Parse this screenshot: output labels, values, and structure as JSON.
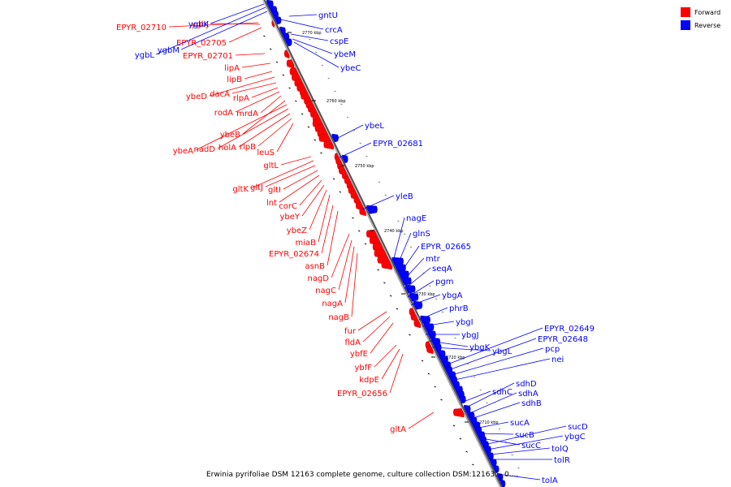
{
  "legend": {
    "forward": {
      "label": "Forward",
      "color": "#ff0000"
    },
    "reverse": {
      "label": "Reverse",
      "color": "#0000ff"
    }
  },
  "caption": "Erwinia pyrifoliae DSM 12163 complete genome, culture collection DSM:12163. - 0....",
  "ticks": [
    "2770 kbp",
    "2760 kbp",
    "2750 kbp",
    "2740 kbp",
    "2730 kbp",
    "2720 kbp",
    "2710 kbp"
  ],
  "forward_genes": [
    "EPYR_02710",
    "ygbJ",
    "EPYR_02705",
    "EPYR_02701",
    "lipA",
    "lipB",
    "ybeD",
    "dacA",
    "rlpA",
    "rodA",
    "mrdA",
    "ybeB",
    "ybeA",
    "nadD",
    "holA",
    "rlpB",
    "leuS",
    "gltL",
    "gltK",
    "gltJ",
    "gltI",
    "lnt",
    "corC",
    "ybeY",
    "ybeZ",
    "miaB",
    "EPYR_02674",
    "asnB",
    "nagD",
    "nagC",
    "nagA",
    "nagB",
    "fur",
    "fldA",
    "ybfE",
    "ybfF",
    "kdpE",
    "EPYR_02656",
    "gltA"
  ],
  "reverse_genes": [
    "ygbK",
    "ygbL",
    "ygbM",
    "gntU",
    "crcA",
    "cspE",
    "ybeM",
    "ybeC",
    "ybeL",
    "EPYR_02681",
    "yleB",
    "nagE",
    "glnS",
    "EPYR_02665",
    "mtr",
    "seqA",
    "pgm",
    "ybgA",
    "phrB",
    "ybgI",
    "ybgJ",
    "ybgK",
    "ybgL",
    "EPYR_02649",
    "EPYR_02648",
    "pcp",
    "nei",
    "sdhC",
    "sdhD",
    "sdhA",
    "sdhB",
    "sucA",
    "sucB",
    "sucC",
    "sucD",
    "ybgC",
    "tolQ",
    "tolR",
    "tolA"
  ]
}
